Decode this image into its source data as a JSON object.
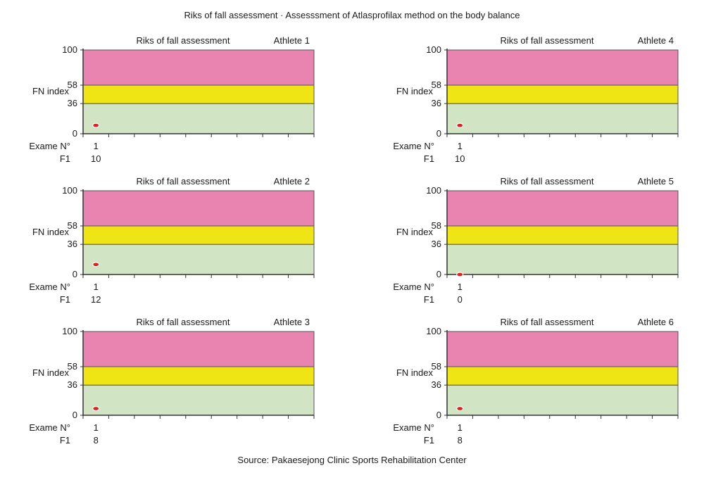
{
  "figure": {
    "title": "Riks of fall assessment · Assesssment of Atlasprofilax method on the body balance",
    "source": "Source: Pakaesejong Clinic Sports Rehabilitation Center"
  },
  "colors": {
    "high_risk": "#e983b0",
    "medium_risk": "#f0e514",
    "low_risk": "#d1e5c4",
    "point": "#e02020",
    "axis": "#333333"
  },
  "chart_data": [
    {
      "type": "scatter",
      "title": "Riks of fall assessment",
      "athlete": "Athlete 1",
      "ylabel": "FN index",
      "ylim": [
        0,
        100
      ],
      "yticks": [
        0,
        36,
        58,
        100
      ],
      "bands": [
        {
          "from": 0,
          "to": 36
        },
        {
          "from": 36,
          "to": 58
        },
        {
          "from": 58,
          "to": 100
        }
      ],
      "xticks": 9,
      "row_labels": [
        "Exame N°",
        "F1"
      ],
      "points": [
        {
          "exam": 1,
          "f1": 10
        }
      ]
    },
    {
      "type": "scatter",
      "title": "Riks of fall assessment",
      "athlete": "Athlete 2",
      "ylabel": "FN index",
      "ylim": [
        0,
        100
      ],
      "yticks": [
        0,
        36,
        58,
        100
      ],
      "bands": [
        {
          "from": 0,
          "to": 36
        },
        {
          "from": 36,
          "to": 58
        },
        {
          "from": 58,
          "to": 100
        }
      ],
      "xticks": 9,
      "row_labels": [
        "Exame N°",
        "F1"
      ],
      "points": [
        {
          "exam": 1,
          "f1": 12
        }
      ]
    },
    {
      "type": "scatter",
      "title": "Riks of fall assessment",
      "athlete": "Athlete 3",
      "ylabel": "FN index",
      "ylim": [
        0,
        100
      ],
      "yticks": [
        0,
        36,
        58,
        100
      ],
      "bands": [
        {
          "from": 0,
          "to": 36
        },
        {
          "from": 36,
          "to": 58
        },
        {
          "from": 58,
          "to": 100
        }
      ],
      "xticks": 9,
      "row_labels": [
        "Exame N°",
        "F1"
      ],
      "points": [
        {
          "exam": 1,
          "f1": 8
        }
      ]
    },
    {
      "type": "scatter",
      "title": "Riks of fall assessment",
      "athlete": "Athlete 4",
      "ylabel": "FN index",
      "ylim": [
        0,
        100
      ],
      "yticks": [
        0,
        36,
        58,
        100
      ],
      "bands": [
        {
          "from": 0,
          "to": 36
        },
        {
          "from": 36,
          "to": 58
        },
        {
          "from": 58,
          "to": 100
        }
      ],
      "xticks": 9,
      "row_labels": [
        "Exame N°",
        "F1"
      ],
      "points": [
        {
          "exam": 1,
          "f1": 10
        }
      ]
    },
    {
      "type": "scatter",
      "title": "Riks of fall assessment",
      "athlete": "Athlete 5",
      "ylabel": "FN index",
      "ylim": [
        0,
        100
      ],
      "yticks": [
        0,
        36,
        58,
        100
      ],
      "bands": [
        {
          "from": 0,
          "to": 36
        },
        {
          "from": 36,
          "to": 58
        },
        {
          "from": 58,
          "to": 100
        }
      ],
      "xticks": 9,
      "row_labels": [
        "Exame N°",
        "F1"
      ],
      "points": [
        {
          "exam": 1,
          "f1": 0
        }
      ]
    },
    {
      "type": "scatter",
      "title": "Riks of fall assessment",
      "athlete": "Athlete 6",
      "ylabel": "FN index",
      "ylim": [
        0,
        100
      ],
      "yticks": [
        0,
        36,
        58,
        100
      ],
      "bands": [
        {
          "from": 0,
          "to": 36
        },
        {
          "from": 36,
          "to": 58
        },
        {
          "from": 58,
          "to": 100
        }
      ],
      "xticks": 9,
      "row_labels": [
        "Exame N°",
        "F1"
      ],
      "points": [
        {
          "exam": 1,
          "f1": 8
        }
      ]
    }
  ]
}
